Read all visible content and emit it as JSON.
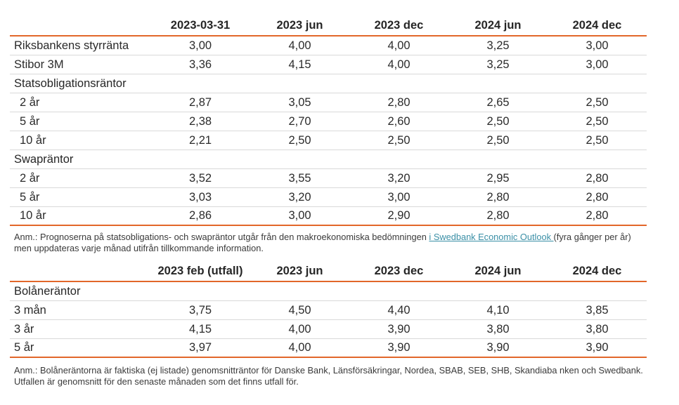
{
  "table1": {
    "headers": [
      "2023-03-31",
      "2023 jun",
      "2023 dec",
      "2024 jun",
      "2024 dec"
    ],
    "rows": [
      {
        "label": "Riksbankens styrränta",
        "values": [
          "3,00",
          "4,00",
          "4,00",
          "3,25",
          "3,00"
        ]
      },
      {
        "label": "Stibor 3M",
        "values": [
          "3,36",
          "4,15",
          "4,00",
          "3,25",
          "3,00"
        ]
      },
      {
        "label": "Statsobligationsräntor",
        "values": []
      },
      {
        "label": "2 år",
        "values": [
          "2,87",
          "3,05",
          "2,80",
          "2,65",
          "2,50"
        ]
      },
      {
        "label": "5 år",
        "values": [
          "2,38",
          "2,70",
          "2,60",
          "2,50",
          "2,50"
        ]
      },
      {
        "label": "10 år",
        "values": [
          "2,21",
          "2,50",
          "2,50",
          "2,50",
          "2,50"
        ]
      },
      {
        "label": "Swapräntor",
        "values": []
      },
      {
        "label": "2 år",
        "values": [
          "3,52",
          "3,55",
          "3,20",
          "2,95",
          "2,80"
        ]
      },
      {
        "label": "5 år",
        "values": [
          "3,03",
          "3,20",
          "3,00",
          "2,80",
          "2,80"
        ]
      },
      {
        "label": "10 år",
        "values": [
          "2,86",
          "3,00",
          "2,90",
          "2,80",
          "2,80"
        ]
      }
    ]
  },
  "note1": {
    "before": "Anm.: Prognoserna på statsobligations- och swapräntor utgår från den makroekonomiska bedömningen ",
    "link": "i Swedbank Economic Outlook ",
    "after": "(fyra gånger per år) men uppdateras varje månad utifrån tillkommande information."
  },
  "table2": {
    "headers": [
      "2023 feb (utfall)",
      "2023 jun",
      "2023 dec",
      "2024 jun",
      "2024 dec"
    ],
    "rows": [
      {
        "label": "Bolåneräntor",
        "values": []
      },
      {
        "label": "3 mån",
        "values": [
          "3,75",
          "4,50",
          "4,40",
          "4,10",
          "3,85"
        ]
      },
      {
        "label": "3 år",
        "values": [
          "4,15",
          "4,00",
          "3,90",
          "3,80",
          "3,80"
        ]
      },
      {
        "label": "5 år",
        "values": [
          "3,97",
          "4,00",
          "3,90",
          "3,90",
          "3,90"
        ]
      }
    ]
  },
  "note2": {
    "text": "Anm.: Bolåneräntorna är faktiska (ej listade) genomsnitträntor för Danske Bank, Länsförsäkringar, Nordea, SBAB, SEB, SHB, Skandiaba nken och Swedbank. Utfallen är genomsnitt för den senaste månaden som det finns utfall för."
  }
}
